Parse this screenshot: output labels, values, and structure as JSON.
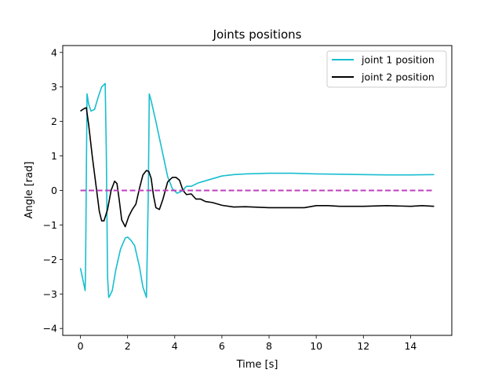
{
  "chart_data": {
    "type": "line",
    "title": "Joints positions",
    "xlabel": "Time [s]",
    "ylabel": "Angle [rad]",
    "xlim": [
      -0.75,
      15.75
    ],
    "ylim": [
      -4.2,
      4.2
    ],
    "xticks": [
      0,
      2,
      4,
      6,
      8,
      10,
      12,
      14
    ],
    "yticks": [
      -4,
      -3,
      -2,
      -1,
      0,
      1,
      2,
      3,
      4
    ],
    "grid": false,
    "legend_position": "top-right",
    "series": [
      {
        "name": "joint 1 position",
        "color": "#17becf",
        "style": "solid",
        "x": [
          0,
          0.2,
          0.22,
          0.28,
          0.35,
          0.45,
          0.6,
          0.75,
          0.9,
          1.05,
          1.1,
          1.15,
          1.2,
          1.25,
          1.35,
          1.5,
          1.7,
          1.9,
          2.0,
          2.15,
          2.3,
          2.5,
          2.65,
          2.8,
          2.88,
          2.92,
          3.0,
          3.2,
          3.45,
          3.7,
          3.9,
          4.1,
          4.3,
          4.5,
          4.7,
          5.0,
          5.5,
          6.0,
          6.5,
          7.0,
          8.0,
          9.0,
          10.0,
          11.0,
          12.0,
          13.0,
          14.0,
          15.0
        ],
        "values": [
          -2.25,
          -2.9,
          -2.1,
          2.8,
          2.5,
          2.3,
          2.35,
          2.7,
          3.0,
          3.1,
          1.0,
          -2.5,
          -3.1,
          -3.05,
          -2.9,
          -2.3,
          -1.7,
          -1.38,
          -1.35,
          -1.45,
          -1.6,
          -2.2,
          -2.8,
          -3.1,
          0.0,
          2.8,
          2.6,
          2.0,
          1.2,
          0.4,
          0.05,
          -0.08,
          -0.02,
          0.12,
          0.12,
          0.22,
          0.32,
          0.42,
          0.46,
          0.48,
          0.5,
          0.5,
          0.48,
          0.47,
          0.46,
          0.45,
          0.45,
          0.46
        ]
      },
      {
        "name": "joint 2 position",
        "color": "#000000",
        "style": "solid",
        "x": [
          0,
          0.15,
          0.25,
          0.35,
          0.5,
          0.65,
          0.8,
          0.9,
          1.0,
          1.15,
          1.3,
          1.45,
          1.55,
          1.65,
          1.75,
          1.9,
          2.05,
          2.2,
          2.35,
          2.5,
          2.65,
          2.8,
          2.9,
          3.0,
          3.1,
          3.2,
          3.35,
          3.5,
          3.7,
          3.9,
          4.05,
          4.2,
          4.35,
          4.5,
          4.7,
          4.9,
          5.1,
          5.3,
          5.6,
          6.0,
          6.5,
          7.0,
          8.0,
          9.0,
          9.5,
          10.0,
          10.5,
          11.0,
          12.0,
          13.0,
          14.0,
          14.5,
          15.0
        ],
        "values": [
          2.3,
          2.37,
          2.4,
          1.9,
          1.0,
          0.2,
          -0.6,
          -0.88,
          -0.88,
          -0.55,
          0.0,
          0.27,
          0.2,
          -0.3,
          -0.85,
          -1.05,
          -0.75,
          -0.55,
          -0.4,
          0.05,
          0.45,
          0.58,
          0.55,
          0.35,
          -0.15,
          -0.5,
          -0.55,
          -0.25,
          0.25,
          0.38,
          0.38,
          0.3,
          0.0,
          -0.12,
          -0.1,
          -0.25,
          -0.25,
          -0.32,
          -0.35,
          -0.43,
          -0.48,
          -0.47,
          -0.5,
          -0.5,
          -0.5,
          -0.44,
          -0.44,
          -0.46,
          -0.46,
          -0.44,
          -0.46,
          -0.44,
          -0.46
        ]
      },
      {
        "name": "",
        "color": "#bf3fbf",
        "style": "dashed",
        "x": [
          0,
          15
        ],
        "values": [
          0,
          0
        ]
      }
    ]
  }
}
